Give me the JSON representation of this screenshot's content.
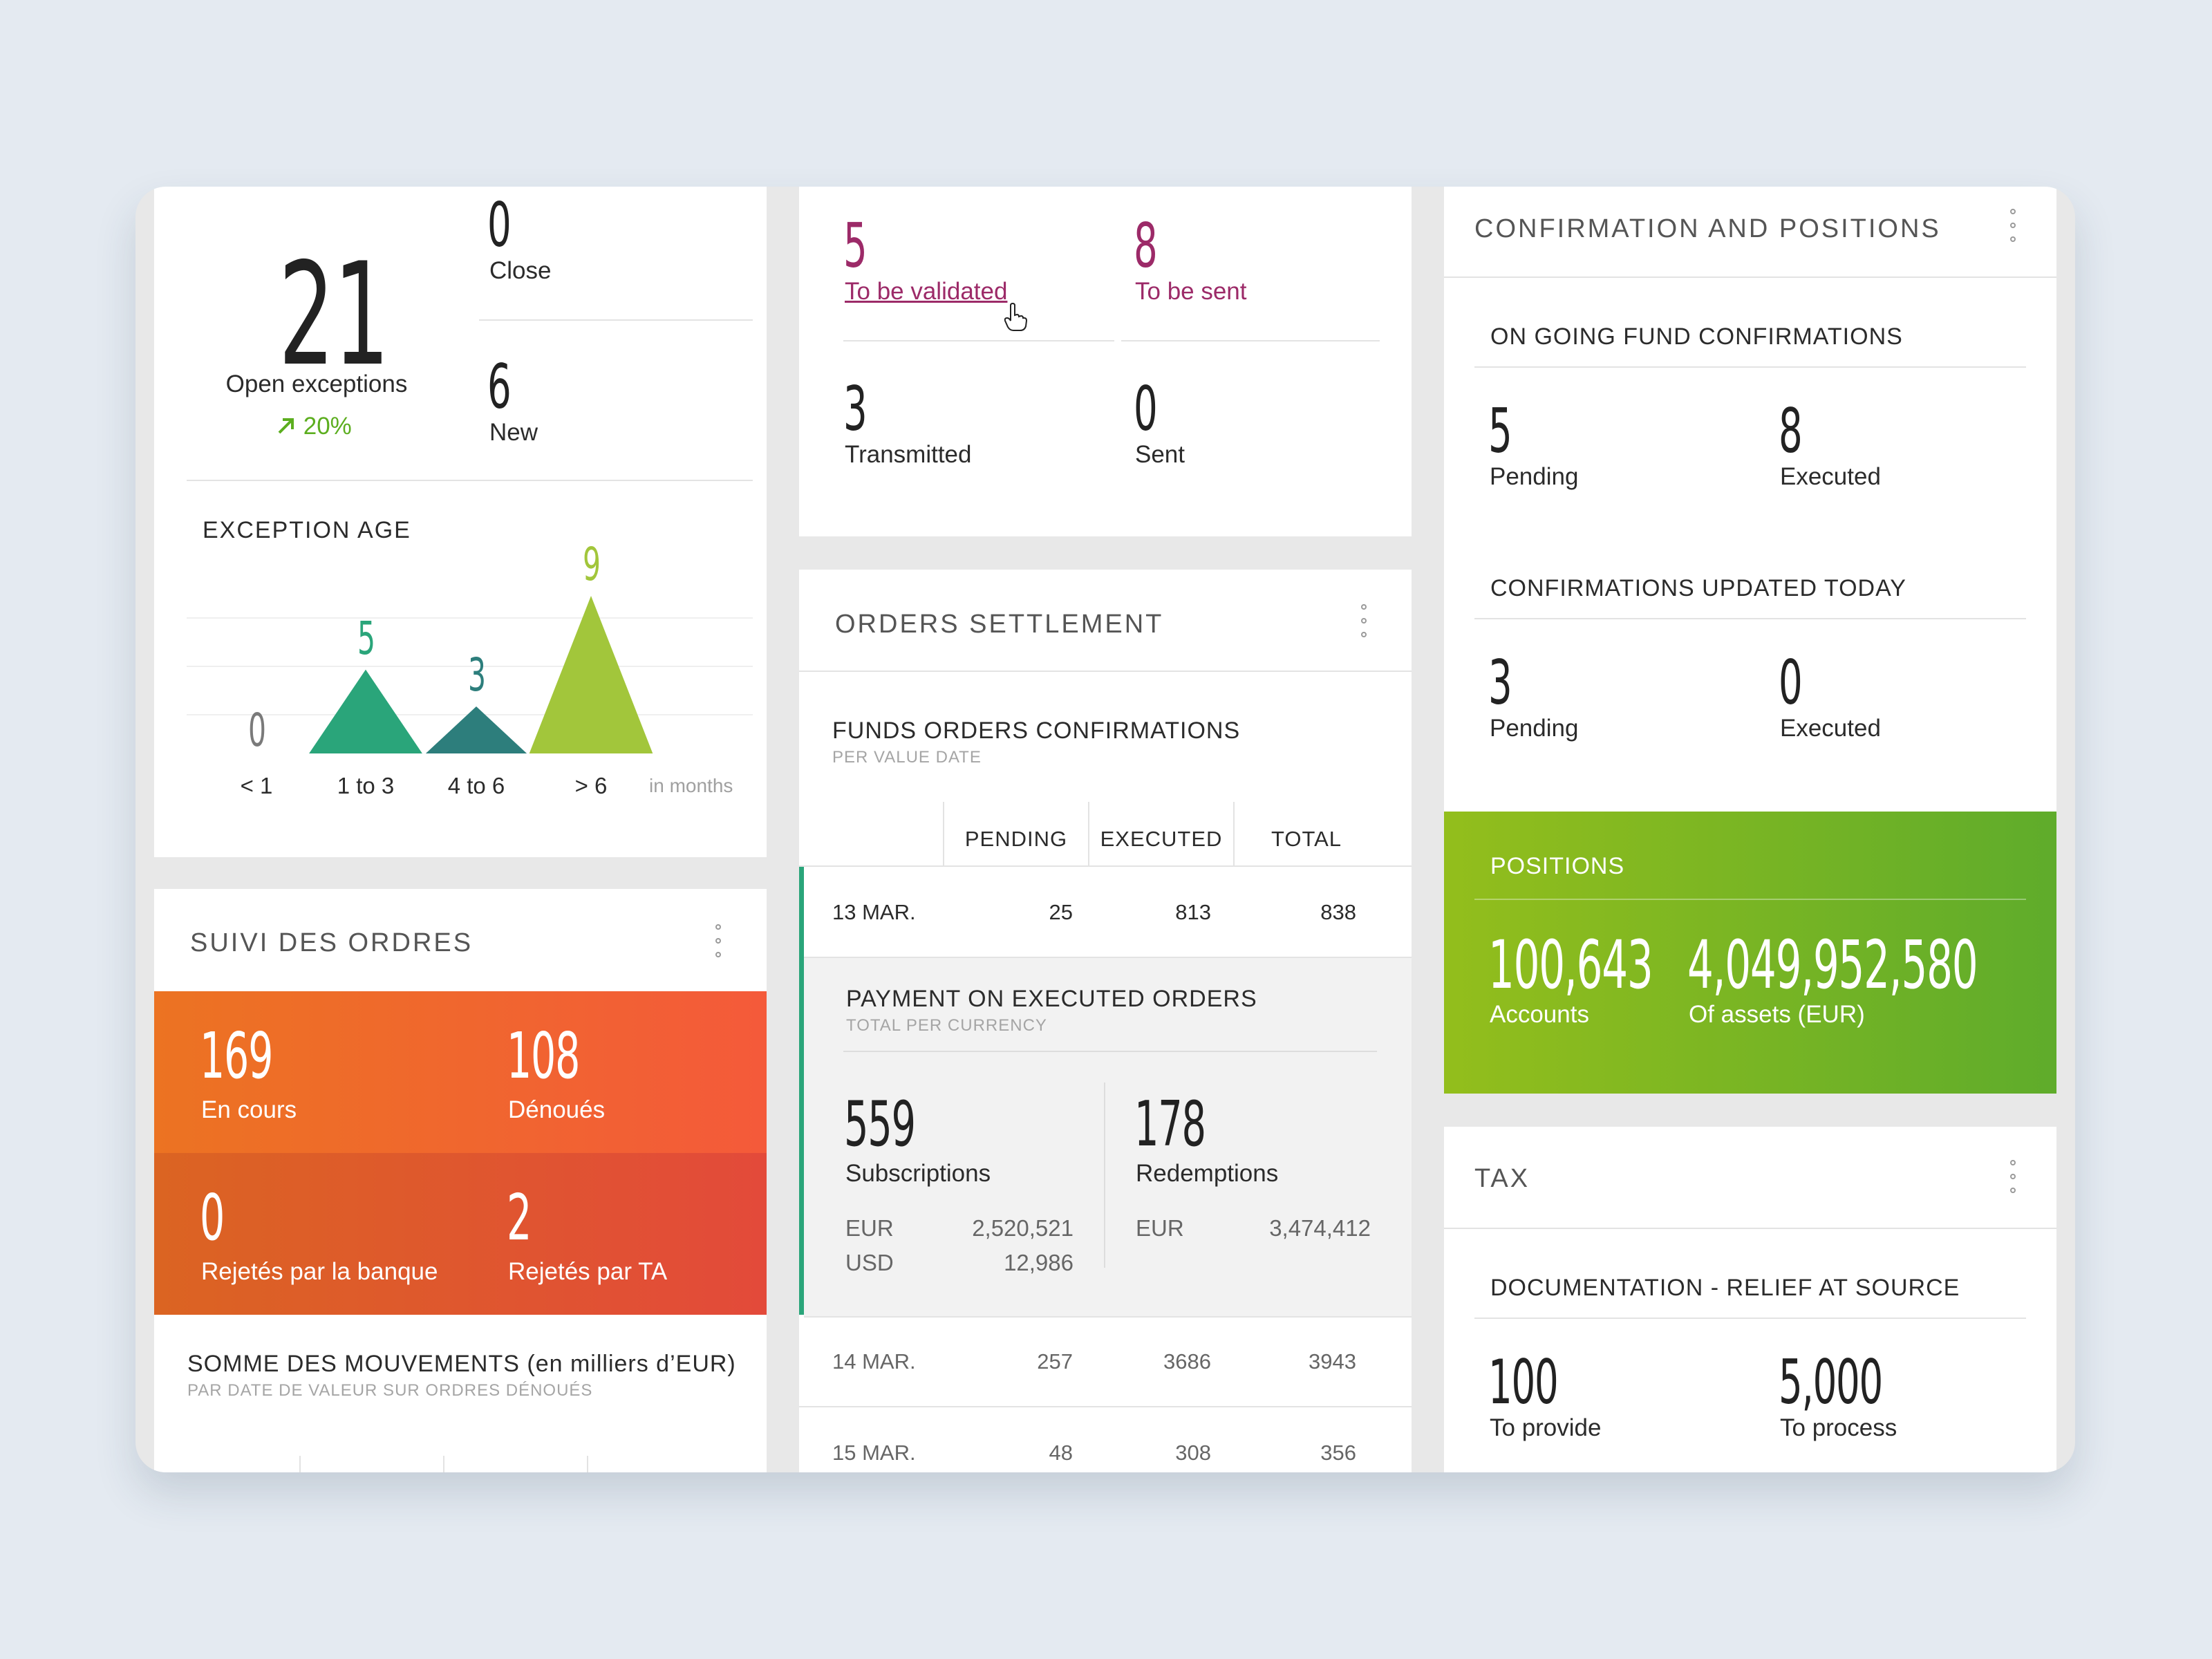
{
  "exceptions": {
    "open_count": "21",
    "open_label": "Open exceptions",
    "trend": "20%",
    "close_count": "0",
    "close_label": "Close",
    "new_count": "6",
    "new_label": "New",
    "age_title": "EXCEPTION AGE",
    "age_unit": "in months",
    "chart_data": {
      "type": "area",
      "title": "EXCEPTION AGE",
      "xlabel": "in months",
      "categories": [
        "< 1",
        "1 to 3",
        "4 to 6",
        "> 6"
      ],
      "values": [
        0,
        5,
        3,
        9
      ],
      "colors": [
        "#7a7a7a",
        "#2aa57a",
        "#2d7e7c",
        "#a2c63b"
      ],
      "grid": true
    }
  },
  "validation": {
    "to_validate_count": "5",
    "to_validate_label": "To be validated",
    "to_send_count": "8",
    "to_send_label": "To be sent",
    "transmitted_count": "3",
    "transmitted_label": "Transmitted",
    "sent_count": "0",
    "sent_label": "Sent",
    "accent": "#9c2a68"
  },
  "suivi": {
    "title": "SUIVI DES ORDRES",
    "encours_count": "169",
    "encours_label": "En cours",
    "denoues_count": "108",
    "denoues_label": "Dénoués",
    "rejbank_count": "0",
    "rejbank_label": "Rejetés par la banque",
    "rejta_count": "2",
    "rejta_label": "Rejetés par TA",
    "somme_title": "SOMME DES MOUVEMENTS (en milliers d’EUR)",
    "somme_sub": "PAR DATE DE VALEUR SUR ORDRES DÉNOUÉS"
  },
  "orders": {
    "title": "ORDERS SETTLEMENT",
    "funds_title": "FUNDS ORDERS CONFIRMATIONS",
    "funds_sub": "PER VALUE DATE",
    "columns": [
      "PENDING",
      "EXECUTED",
      "TOTAL"
    ],
    "rows": [
      {
        "date": "13 MAR.",
        "pending": "25",
        "executed": "813",
        "total": "838"
      },
      {
        "date": "14 MAR.",
        "pending": "257",
        "executed": "3686",
        "total": "3943"
      },
      {
        "date": "15 MAR.",
        "pending": "48",
        "executed": "308",
        "total": "356"
      }
    ],
    "payment_title": "PAYMENT ON EXECUTED ORDERS",
    "payment_sub": "TOTAL PER CURRENCY",
    "subs_count": "559",
    "subs_label": "Subscriptions",
    "subs_cur1": "EUR",
    "subs_val1": "2,520,521",
    "subs_cur2": "USD",
    "subs_val2": "12,986",
    "red_count": "178",
    "red_label": "Redemptions",
    "red_cur1": "EUR",
    "red_val1": "3,474,412"
  },
  "confirmation": {
    "title": "CONFIRMATION AND POSITIONS",
    "ongoing_title": "ON GOING FUND CONFIRMATIONS",
    "ongoing_pending": "5",
    "ongoing_executed": "8",
    "updated_title": "CONFIRMATIONS UPDATED TODAY",
    "updated_pending": "3",
    "updated_executed": "0",
    "pending_label": "Pending",
    "executed_label": "Executed",
    "positions_title": "POSITIONS",
    "accounts_count": "100,643",
    "accounts_label": "Accounts",
    "assets_count": "4,049,952,580",
    "assets_label": "Of assets (EUR)"
  },
  "tax": {
    "title": "TAX",
    "doc_title": "DOCUMENTATION - RELIEF AT SOURCE",
    "provide_count": "100",
    "provide_label": "To provide",
    "process_count": "5,000",
    "process_label": "To process"
  }
}
